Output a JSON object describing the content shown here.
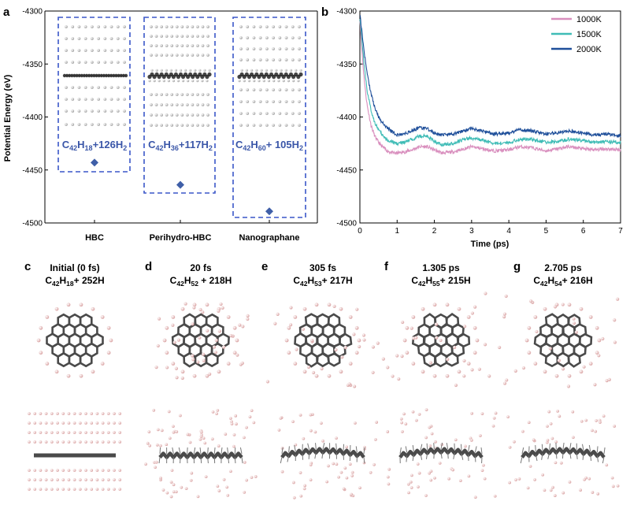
{
  "panels": {
    "a": "a",
    "b": "b",
    "c": "c",
    "d": "d",
    "e": "e",
    "f": "f",
    "g": "g"
  },
  "colors": {
    "marker": "#3f5fa8",
    "box": "#3a56c8",
    "line_1000K": "#d98fbe",
    "line_1500K": "#3fbcb6",
    "line_2000K": "#1f4f9a",
    "carbon": "#4a4a4a",
    "hydrogen": "#e8b7b7"
  },
  "chart_data": [
    {
      "type": "scatter",
      "panel": "a",
      "ylabel": "Potential Energy (eV)",
      "ylim": [
        -4500,
        -4300
      ],
      "yticks": [
        -4300,
        -4350,
        -4400,
        -4450,
        -4500
      ],
      "categories": [
        "HBC",
        "Perihydro-HBC",
        "Nanographane"
      ],
      "values": [
        -4443,
        -4464,
        -4489
      ],
      "formulas": [
        {
          "main": "C",
          "s1": "42",
          "mid": "H",
          "s2": "18",
          "tail": "+126H",
          "s3": "2"
        },
        {
          "main": "C",
          "s1": "42",
          "mid": "H",
          "s2": "36",
          "tail": "+117H",
          "s3": "2"
        },
        {
          "main": "C",
          "s1": "42",
          "mid": "H",
          "s2": "60",
          "tail": "+ 105H",
          "s3": "2"
        }
      ]
    },
    {
      "type": "line",
      "panel": "b",
      "xlabel": "Time (ps)",
      "xlim": [
        0,
        7
      ],
      "ylim": [
        -4500,
        -4300
      ],
      "xticks": [
        0,
        1,
        2,
        3,
        4,
        5,
        6,
        7
      ],
      "yticks": [
        -4300,
        -4350,
        -4400,
        -4450,
        -4500
      ],
      "legend_position": "top-right",
      "x": [
        0,
        0.05,
        0.1,
        0.15,
        0.2,
        0.3,
        0.4,
        0.5,
        0.6,
        0.7,
        0.8,
        0.9,
        1.0,
        1.2,
        1.4,
        1.6,
        1.8,
        2.0,
        2.2,
        2.5,
        2.8,
        3.0,
        3.3,
        3.6,
        4.0,
        4.3,
        4.6,
        5.0,
        5.3,
        5.6,
        6.0,
        6.3,
        6.6,
        7.0
      ],
      "series": [
        {
          "name": "1000K",
          "values": [
            -4308,
            -4335,
            -4358,
            -4376,
            -4390,
            -4408,
            -4418,
            -4424,
            -4428,
            -4431,
            -4433,
            -4434,
            -4434,
            -4433,
            -4431,
            -4428,
            -4428,
            -4431,
            -4434,
            -4433,
            -4430,
            -4428,
            -4430,
            -4432,
            -4431,
            -4428,
            -4429,
            -4432,
            -4430,
            -4428,
            -4430,
            -4431,
            -4430,
            -4431
          ]
        },
        {
          "name": "1500K",
          "values": [
            -4306,
            -4325,
            -4346,
            -4362,
            -4376,
            -4394,
            -4405,
            -4412,
            -4417,
            -4421,
            -4423,
            -4424,
            -4425,
            -4424,
            -4421,
            -4418,
            -4418,
            -4423,
            -4426,
            -4425,
            -4421,
            -4420,
            -4422,
            -4425,
            -4424,
            -4421,
            -4421,
            -4424,
            -4423,
            -4421,
            -4422,
            -4424,
            -4423,
            -4424
          ]
        },
        {
          "name": "2000K",
          "values": [
            -4303,
            -4318,
            -4334,
            -4348,
            -4360,
            -4378,
            -4391,
            -4400,
            -4405,
            -4409,
            -4412,
            -4415,
            -4417,
            -4416,
            -4413,
            -4410,
            -4411,
            -4415,
            -4417,
            -4416,
            -4413,
            -4411,
            -4413,
            -4416,
            -4415,
            -4412,
            -4413,
            -4416,
            -4415,
            -4413,
            -4415,
            -4417,
            -4416,
            -4418
          ]
        }
      ]
    }
  ],
  "snapshots": [
    {
      "label": "c",
      "t1": "Initial (0 fs)",
      "f": [
        "C",
        "42",
        "H",
        "18",
        "+ 252H"
      ]
    },
    {
      "label": "d",
      "t1": "20 fs",
      "f": [
        "C",
        "42",
        "H",
        "52",
        " + 218H"
      ]
    },
    {
      "label": "e",
      "t1": "305 fs",
      "f": [
        "C",
        "42",
        "H",
        "53",
        "+ 217H"
      ]
    },
    {
      "label": "f",
      "t1": "1.305 ps",
      "f": [
        "C",
        "42",
        "H",
        "55",
        "+ 215H"
      ]
    },
    {
      "label": "g",
      "t1": "2.705 ps",
      "f": [
        "C",
        "42",
        "H",
        "54",
        "+ 216H"
      ]
    }
  ]
}
